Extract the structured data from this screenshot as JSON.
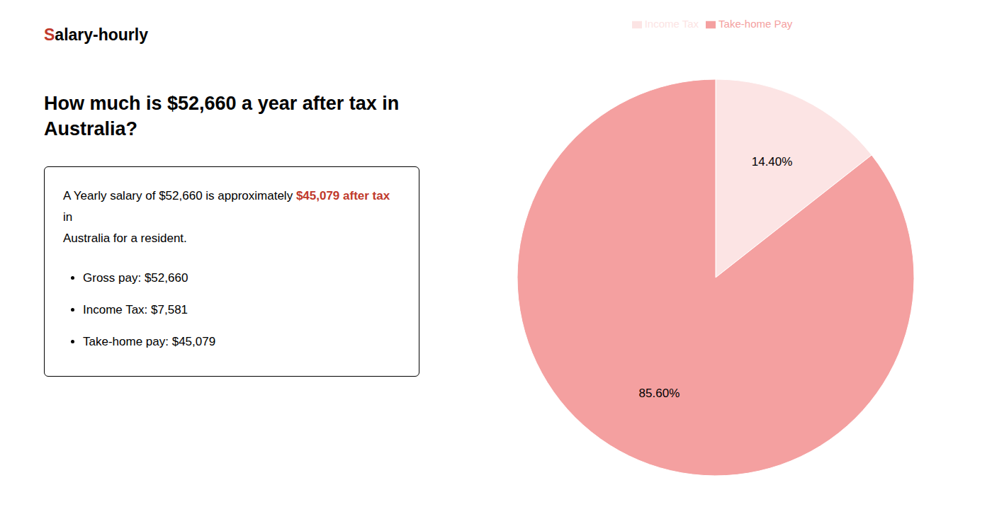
{
  "chart_data": {
    "type": "pie",
    "title": "How much is $52,660 a year after tax in Australia?",
    "categories": [
      "Income Tax",
      "Take-home Pay"
    ],
    "values": [
      14.4,
      85.6
    ],
    "value_labels": [
      "14.40%",
      "85.60%"
    ],
    "colors": [
      "#fce4e4",
      "#f4a0a0"
    ],
    "data_labels": true,
    "legend": "top",
    "annotations": [
      {
        "text": "S",
        "color": "#c0392b"
      },
      {
        "text": "alary-hourly"
      },
      {
        "text": "A Yearly salary of $52,660 is approximately "
      },
      {
        "text": "$45,079 after tax",
        "color": "#c0392b"
      },
      {
        "text": " in"
      },
      {
        "text": "Australia for a resident."
      },
      {
        "text": "Gross pay: $52,660"
      },
      {
        "text": "Income Tax: $7,581"
      },
      {
        "text": "Take-home pay: $45,079"
      }
    ]
  }
}
